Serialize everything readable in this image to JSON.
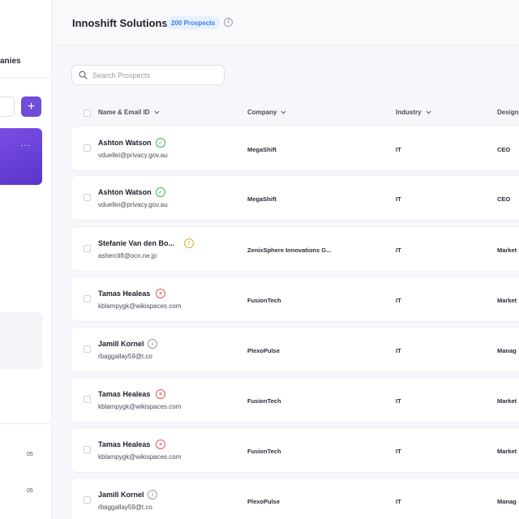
{
  "sidebar": {
    "header_text": "anies",
    "add_label": "+",
    "more_label": "···",
    "counts": [
      "05",
      "05"
    ]
  },
  "header": {
    "title": "Innoshift Solutions",
    "badge": "200 Prospects",
    "info_icon": "info-icon"
  },
  "search": {
    "placeholder": "Search Prospects",
    "value": ""
  },
  "table": {
    "columns": [
      "Name & Email ID",
      "Company",
      "Industry",
      "Design"
    ],
    "rows": [
      {
        "name": "Ashton Watson",
        "email": "vduellei@privacy.gov.au",
        "status": "verified",
        "company": "MegaShift",
        "industry": "IT",
        "designation": "CEO"
      },
      {
        "name": "Ashton Watson",
        "email": "vduellei@privacy.gov.au",
        "status": "verified",
        "company": "MegaShift",
        "industry": "IT",
        "designation": "CEO"
      },
      {
        "name": "Stefanie Van den Bo...",
        "email": "asherclifl@ocn.ne.jp",
        "status": "risky",
        "company": "ZenixSphere Innovations G...",
        "industry": "IT",
        "designation": "Market"
      },
      {
        "name": "Tamas Healeas",
        "email": "kblampygk@wikispaces.com",
        "status": "invalid",
        "company": "FusionTech",
        "industry": "IT",
        "designation": "Market"
      },
      {
        "name": "Jamill Kornel",
        "email": "rbaggallay59@t.co",
        "status": "unknown",
        "company": "PlexoPulse",
        "industry": "IT",
        "designation": "Manag"
      },
      {
        "name": "Tamas Healeas",
        "email": "kblampygk@wikispaces.com",
        "status": "invalid",
        "company": "FusionTech",
        "industry": "IT",
        "designation": "Market"
      },
      {
        "name": "Tamas Healeas",
        "email": "kblampygk@wikispaces.com",
        "status": "invalid",
        "company": "FusionTech",
        "industry": "IT",
        "designation": "Market"
      },
      {
        "name": "Jamill Kornel",
        "email": "rbaggallay59@t.co",
        "status": "unknown",
        "company": "PlexoPulse",
        "industry": "IT",
        "designation": "Manag"
      }
    ]
  },
  "colors": {
    "accent": "#6f4cd9",
    "verified": "#3cb55b",
    "invalid": "#e25a5a",
    "unknown": "#9a9cab",
    "risky": "#f0a526",
    "badge_bg": "#e7f0ff",
    "badge_text": "#3b7bea"
  }
}
